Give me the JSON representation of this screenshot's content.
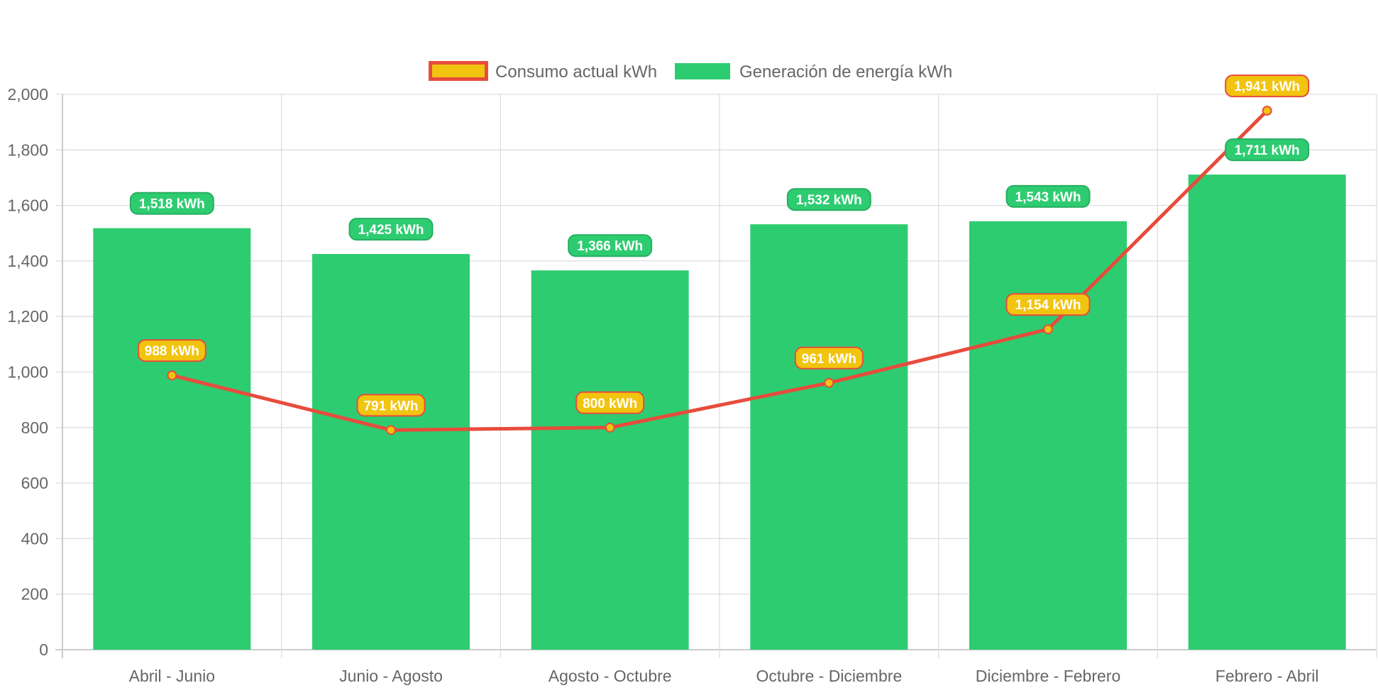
{
  "chart_data": {
    "type": "bar",
    "categories": [
      "Abril - Junio",
      "Junio - Agosto",
      "Agosto - Octubre",
      "Octubre - Diciembre",
      "Diciembre - Febrero",
      "Febrero - Abril"
    ],
    "series": [
      {
        "name": "Consumo actual kWh",
        "type": "line",
        "values": [
          988,
          791,
          800,
          961,
          1154,
          1941
        ],
        "labels": [
          "988 kWh",
          "791 kWh",
          "800 kWh",
          "961 kWh",
          "1,154 kWh",
          "1,941 kWh"
        ],
        "color": "#e74c3c",
        "fill": "#f1c40f"
      },
      {
        "name": "Generación de energía kWh",
        "type": "bar",
        "values": [
          1518,
          1425,
          1366,
          1532,
          1543,
          1711
        ],
        "labels": [
          "1,518 kWh",
          "1,425 kWh",
          "1,366 kWh",
          "1,532 kWh",
          "1,543 kWh",
          "1,711 kWh"
        ],
        "color": "#2ecc71",
        "label_border": "#27ae60"
      }
    ],
    "y_ticks": [
      "0",
      "200",
      "400",
      "600",
      "800",
      "1,000",
      "1,200",
      "1,400",
      "1,600",
      "1,800",
      "2,000"
    ],
    "ylim": [
      0,
      2000
    ],
    "grid": true,
    "legend_position": "top",
    "title": "",
    "xlabel": "",
    "ylabel": ""
  },
  "colors": {
    "grid": "#dddddd",
    "axis": "#cccccc",
    "text": "#666666"
  }
}
